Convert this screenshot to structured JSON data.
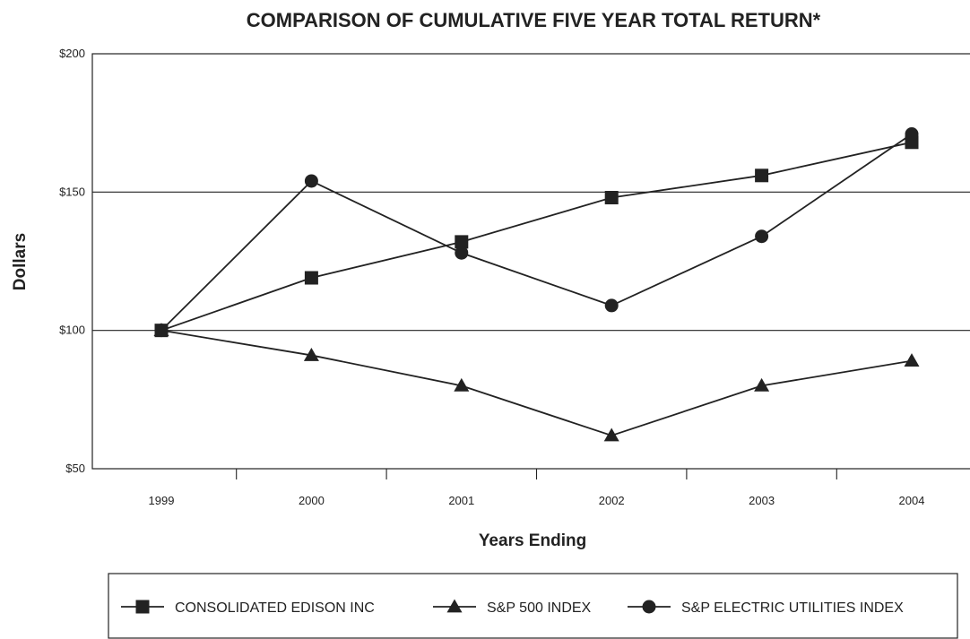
{
  "chart_data": {
    "type": "line",
    "title": "COMPARISON OF CUMULATIVE FIVE YEAR TOTAL RETURN*",
    "xlabel": "Years Ending",
    "ylabel": "Dollars",
    "categories": [
      "1999",
      "2000",
      "2001",
      "2002",
      "2003",
      "2004"
    ],
    "yticks": [
      {
        "value": 50,
        "label": "$50"
      },
      {
        "value": 100,
        "label": "$100"
      },
      {
        "value": 150,
        "label": "$150"
      },
      {
        "value": 200,
        "label": "$200"
      }
    ],
    "ylim": [
      50,
      200
    ],
    "grid": "horizontal",
    "legend_position": "bottom",
    "series": [
      {
        "name": "CONSOLIDATED EDISON INC",
        "marker": "square",
        "values": [
          100,
          119,
          132,
          148,
          156,
          168
        ]
      },
      {
        "name": "S&P 500 INDEX",
        "marker": "triangle",
        "values": [
          100,
          91,
          80,
          62,
          80,
          89
        ]
      },
      {
        "name": "S&P ELECTRIC UTILITIES INDEX",
        "marker": "circle",
        "values": [
          100,
          154,
          128,
          109,
          134,
          171
        ]
      }
    ]
  }
}
